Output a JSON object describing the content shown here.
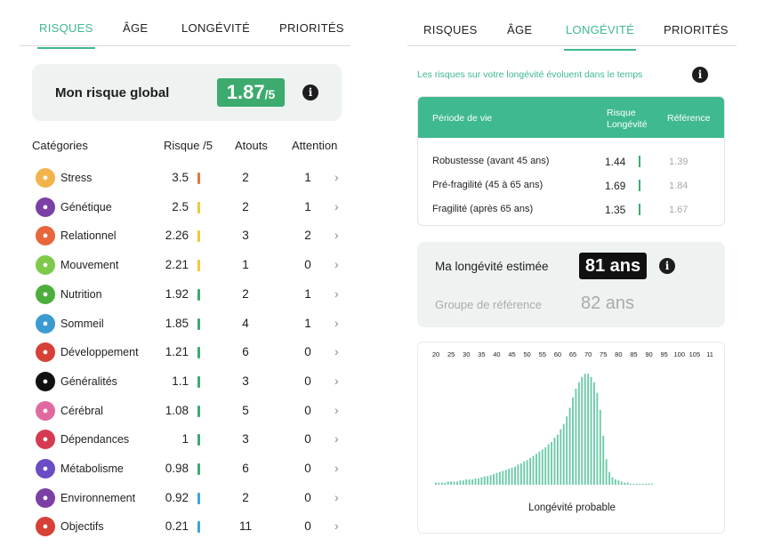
{
  "left_tabs": [
    "RISQUES",
    "ÂGE",
    "LONGÉVITÉ",
    "PRIORITÉS"
  ],
  "right_tabs": [
    "RISQUES",
    "ÂGE",
    "LONGÉVITÉ",
    "PRIORITÉS"
  ],
  "global": {
    "label": "Mon risque global",
    "value": "1.87",
    "suffix": "/5"
  },
  "categories_header": {
    "name": "Catégories",
    "risk": "Risque /5",
    "atouts": "Atouts",
    "attention": "Attention"
  },
  "categories": [
    {
      "name": "Stress",
      "risk": "3.5",
      "atouts": "2",
      "attention": "1",
      "color": "#e07a3c",
      "icon": "stress-icon",
      "icon_bg": "#f2b44a"
    },
    {
      "name": "Génétique",
      "risk": "2.5",
      "atouts": "2",
      "attention": "1",
      "color": "#f2c838",
      "icon": "dna-icon",
      "icon_bg": "#7b3fa6"
    },
    {
      "name": "Relationnel",
      "risk": "2.26",
      "atouts": "3",
      "attention": "2",
      "color": "#f2c838",
      "icon": "people-icon",
      "icon_bg": "#e8663c"
    },
    {
      "name": "Mouvement",
      "risk": "2.21",
      "atouts": "1",
      "attention": "0",
      "color": "#f2c838",
      "icon": "running-icon",
      "icon_bg": "#7ec94a"
    },
    {
      "name": "Nutrition",
      "risk": "1.92",
      "atouts": "2",
      "attention": "1",
      "color": "#3dab6e",
      "icon": "apple-icon",
      "icon_bg": "#4cae3c"
    },
    {
      "name": "Sommeil",
      "risk": "1.85",
      "atouts": "4",
      "attention": "1",
      "color": "#3dab6e",
      "icon": "sleep-icon",
      "icon_bg": "#3a9bd1"
    },
    {
      "name": "Développement",
      "risk": "1.21",
      "atouts": "6",
      "attention": "0",
      "color": "#3dab6e",
      "icon": "growth-icon",
      "icon_bg": "#d64036"
    },
    {
      "name": "Généralités",
      "risk": "1.1",
      "atouts": "3",
      "attention": "0",
      "color": "#3dab6e",
      "icon": "ring-icon",
      "icon_bg": "#111111"
    },
    {
      "name": "Cérébral",
      "risk": "1.08",
      "atouts": "5",
      "attention": "0",
      "color": "#3dab6e",
      "icon": "brain-icon",
      "icon_bg": "#e06aa0"
    },
    {
      "name": "Dépendances",
      "risk": "1",
      "atouts": "3",
      "attention": "0",
      "color": "#3dab6e",
      "icon": "no-smoking-icon",
      "icon_bg": "#d63a52"
    },
    {
      "name": "Métabolisme",
      "risk": "0.98",
      "atouts": "6",
      "attention": "0",
      "color": "#3dab6e",
      "icon": "heartbeat-icon",
      "icon_bg": "#6a4cc4"
    },
    {
      "name": "Environnement",
      "risk": "0.92",
      "atouts": "2",
      "attention": "0",
      "color": "#3aa7d8",
      "icon": "globe-icon",
      "icon_bg": "#7b3fa6"
    },
    {
      "name": "Objectifs",
      "risk": "0.21",
      "atouts": "11",
      "attention": "0",
      "color": "#3aa7d8",
      "icon": "target-icon",
      "icon_bg": "#d64036"
    }
  ],
  "evolution_text": "Les risques sur votre longévité évoluent dans le temps",
  "period_header": {
    "c1": "Période de vie",
    "c2a": "Risque",
    "c2b": "Longévité",
    "c3": "Référence"
  },
  "periods": [
    {
      "name": "Robustesse (avant 45 ans)",
      "value": "1.44",
      "ref": "1.39"
    },
    {
      "name": "Pré-fragilité (45 à 65 ans)",
      "value": "1.69",
      "ref": "1.84"
    },
    {
      "name": "Fragilité (après 65 ans)",
      "value": "1.35",
      "ref": "1.67"
    }
  ],
  "longevity": {
    "label": "Ma longévité estimée",
    "value": "81 ans",
    "ref_label": "Groupe de référence",
    "ref_value": "82 ans"
  },
  "chart_data": {
    "type": "bar",
    "tick_labels": [
      "20",
      "25",
      "30",
      "35",
      "40",
      "45",
      "50",
      "55",
      "60",
      "65",
      "70",
      "75",
      "80",
      "85",
      "90",
      "95",
      "100",
      "105",
      "11"
    ],
    "xlabel": "Longévité probable",
    "x_start": 20,
    "x_step": 1,
    "values": [
      2,
      2,
      2,
      2,
      3,
      3,
      3,
      3,
      4,
      4,
      5,
      5,
      5,
      6,
      6,
      7,
      8,
      8,
      9,
      10,
      11,
      12,
      13,
      14,
      15,
      16,
      17,
      19,
      20,
      22,
      23,
      25,
      27,
      29,
      31,
      33,
      35,
      38,
      40,
      44,
      47,
      52,
      57,
      64,
      72,
      82,
      90,
      96,
      101,
      104,
      104,
      101,
      96,
      86,
      70,
      46,
      24,
      12,
      7,
      5,
      4,
      3,
      2,
      2,
      1,
      1,
      1,
      1,
      1,
      1,
      1,
      1
    ],
    "bar_color": "#6dcaa8",
    "y_max": 110,
    "grid": false
  }
}
